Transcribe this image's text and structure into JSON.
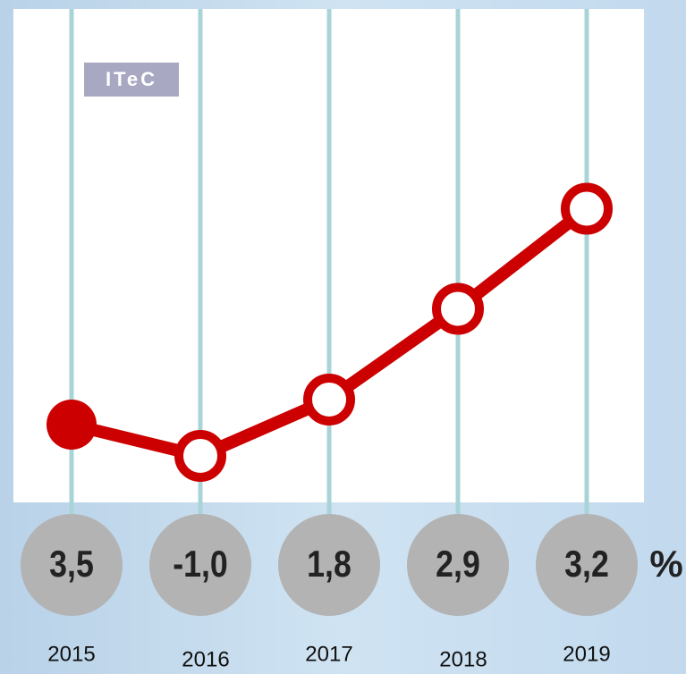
{
  "chart_data": {
    "type": "line",
    "badge": "ITeC",
    "categories": [
      "2015",
      "2016",
      "2017",
      "2018",
      "2019"
    ],
    "values": [
      3.5,
      -1.0,
      1.8,
      2.9,
      3.2
    ],
    "value_labels": [
      "3,5",
      "-1,0",
      "1,8",
      "2,9",
      "3,2"
    ],
    "unit": "%",
    "color": "#cc0000",
    "grid": true
  }
}
